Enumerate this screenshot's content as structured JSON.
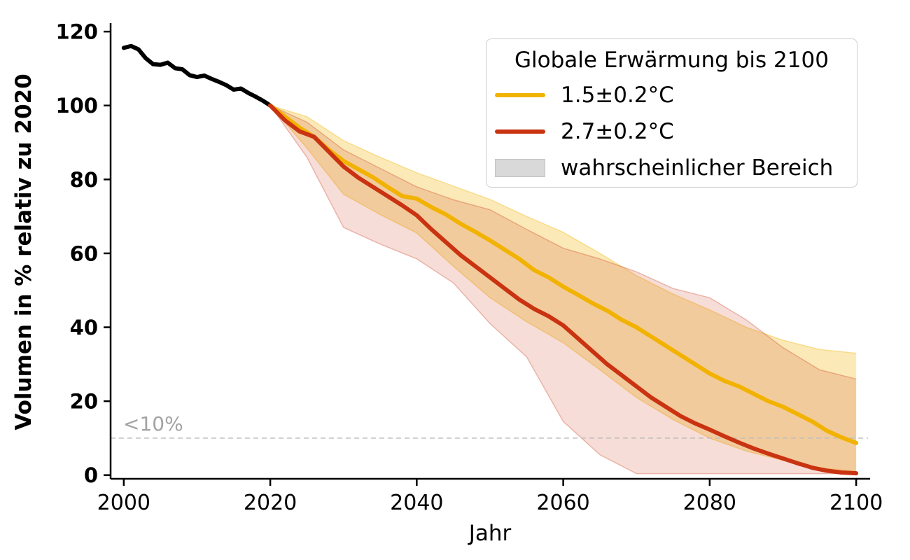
{
  "axes": {
    "xlabel": "Jahr",
    "ylabel": "Volumen in % relativ zu 2020"
  },
  "annotation": {
    "threshold_label": "<10%",
    "threshold_value": 10
  },
  "legend": {
    "title": "Globale Erwärmung bis 2100",
    "entries": [
      {
        "type": "line",
        "color": "#F2B200",
        "label": "1.5±0.2°C"
      },
      {
        "type": "line",
        "color": "#C93311",
        "label": "2.7±0.2°C"
      },
      {
        "type": "patch",
        "color": "#d9d9d9",
        "label": "wahrscheinlicher Bereich"
      }
    ]
  },
  "chart_data": {
    "type": "line",
    "title": "",
    "xlabel": "Jahr",
    "ylabel": "Volumen in % relativ zu 2020",
    "xlim": [
      1998.2,
      2101.9
    ],
    "ylim": [
      -1,
      122.3
    ],
    "xticks": [
      2000,
      2020,
      2040,
      2060,
      2080,
      2100
    ],
    "yticks": [
      0,
      20,
      40,
      60,
      80,
      100,
      120
    ],
    "grid": false,
    "legend_position": "upper right",
    "threshold_line": {
      "y": 10,
      "style": "dashed",
      "color": "#bdbdbd",
      "label": "<10%"
    },
    "series": [
      {
        "id": "historical",
        "name": "",
        "color": "#000000",
        "x": [
          2000,
          2001,
          2002,
          2003,
          2004,
          2005,
          2006,
          2007,
          2008,
          2009,
          2010,
          2011,
          2012,
          2013,
          2014,
          2015,
          2016,
          2017,
          2018,
          2019,
          2020
        ],
        "values": [
          115.6,
          116.1,
          115.2,
          112.8,
          111.2,
          111.0,
          111.6,
          110.1,
          109.8,
          108.2,
          107.7,
          108.1,
          107.2,
          106.4,
          105.5,
          104.3,
          104.6,
          103.4,
          102.4,
          101.3,
          100.0
        ]
      },
      {
        "id": "warming-1.5",
        "name": "1.5±0.2°C",
        "color": "#F2B200",
        "x": [
          2020,
          2022,
          2024,
          2026,
          2028,
          2030,
          2032,
          2034,
          2036,
          2038,
          2040,
          2042,
          2044,
          2046,
          2048,
          2050,
          2052,
          2054,
          2056,
          2058,
          2060,
          2062,
          2064,
          2066,
          2068,
          2070,
          2072,
          2074,
          2076,
          2078,
          2080,
          2082,
          2084,
          2086,
          2088,
          2090,
          2092,
          2094,
          2096,
          2098,
          2100
        ],
        "values": [
          100,
          97,
          94,
          91.5,
          88,
          85,
          82.8,
          80.6,
          78,
          75.5,
          74.8,
          72.5,
          70.5,
          68,
          65.8,
          63.5,
          61,
          58.5,
          55.5,
          53.5,
          51,
          48.8,
          46.5,
          44.5,
          42,
          40,
          37.5,
          35,
          32.5,
          30,
          27.5,
          25.5,
          24,
          22,
          20,
          18.5,
          16.5,
          14.5,
          12,
          10.2,
          8.7
        ]
      },
      {
        "id": "warming-2.7",
        "name": "2.7±0.2°C",
        "color": "#C93311",
        "x": [
          2020,
          2022,
          2024,
          2026,
          2028,
          2030,
          2032,
          2034,
          2036,
          2038,
          2040,
          2042,
          2044,
          2046,
          2048,
          2050,
          2052,
          2054,
          2056,
          2058,
          2060,
          2062,
          2064,
          2066,
          2068,
          2070,
          2072,
          2074,
          2076,
          2078,
          2080,
          2082,
          2084,
          2086,
          2088,
          2090,
          2092,
          2094,
          2096,
          2098,
          2100
        ],
        "values": [
          100,
          96,
          93,
          91.5,
          87.5,
          83.5,
          80.5,
          78,
          75.5,
          73,
          70.3,
          66.5,
          63,
          59.5,
          56.5,
          53.5,
          50.5,
          47.5,
          45,
          43,
          40.5,
          37,
          33.5,
          30,
          27,
          24,
          21,
          18.5,
          16,
          14,
          12.3,
          10.5,
          8.8,
          7.2,
          5.8,
          4.5,
          3.2,
          2,
          1.2,
          0.7,
          0.5
        ]
      }
    ],
    "bands": [
      {
        "id": "band-1.5",
        "name": "wahrscheinlicher Bereich 1.5°C",
        "fill": "rgba(242,178,0,0.28)",
        "edge": "rgba(242,178,0,0.35)",
        "x": [
          2020,
          2025,
          2030,
          2035,
          2040,
          2045,
          2050,
          2055,
          2060,
          2065,
          2070,
          2075,
          2080,
          2085,
          2090,
          2095,
          2100
        ],
        "upper": [
          100,
          97,
          90.5,
          86,
          81.8,
          78.2,
          74.6,
          70,
          65.7,
          60,
          54,
          49,
          44.7,
          40,
          36.5,
          34,
          33
        ],
        "lower": [
          100,
          88.5,
          76,
          70.5,
          65.5,
          56.5,
          48,
          41.5,
          35.8,
          28.5,
          21,
          15,
          10,
          6.5,
          4,
          2,
          1
        ]
      },
      {
        "id": "band-2.7",
        "name": "wahrscheinlicher Bereich 2.7°C",
        "fill": "rgba(201,51,17,0.17)",
        "edge": "rgba(201,51,17,0.30)",
        "x": [
          2020,
          2025,
          2030,
          2035,
          2040,
          2045,
          2050,
          2055,
          2060,
          2065,
          2070,
          2075,
          2080,
          2085,
          2090,
          2095,
          2100
        ],
        "upper": [
          100,
          95.5,
          88,
          83,
          78,
          74.5,
          71.8,
          66.5,
          61.4,
          58.5,
          55,
          50.5,
          48,
          42,
          34.5,
          28.5,
          26
        ],
        "lower": [
          100,
          86,
          67,
          62.5,
          58.5,
          52,
          41,
          32,
          14.5,
          5.5,
          0.4,
          0.4,
          0.4,
          0.4,
          0.4,
          0.4,
          0.4
        ]
      }
    ]
  }
}
